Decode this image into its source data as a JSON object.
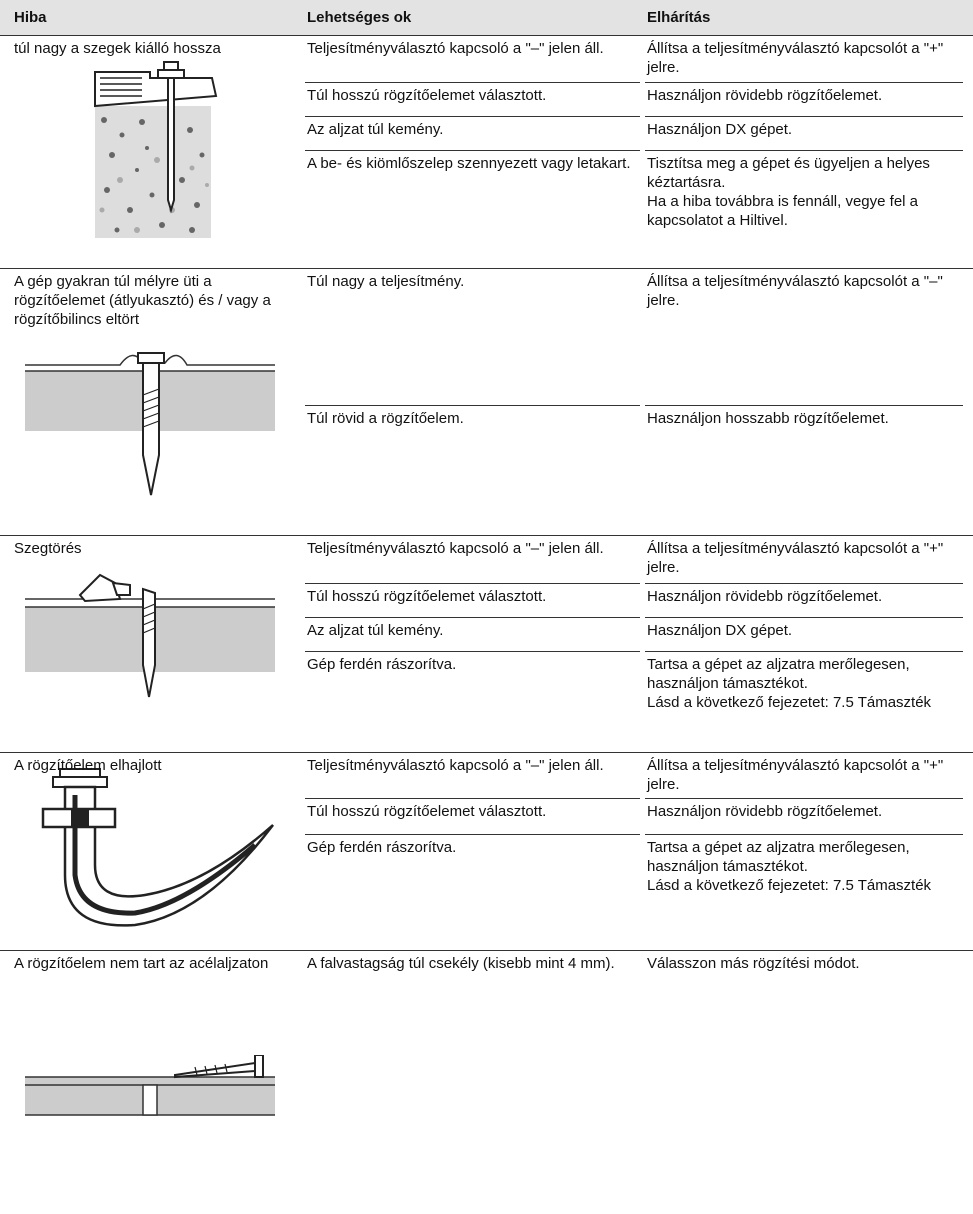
{
  "table": {
    "header": [
      "Hiba",
      "Lehetséges ok",
      "Elhárítás"
    ],
    "groups": [
      {
        "problem": "túl nagy a szegek kiálló hossza",
        "rows": [
          {
            "cause": "Teljesítményválasztó kapcsoló a \"–\" jelen áll.",
            "remedy": [
              "Állítsa a teljesítményválasztó kapcsolót a \"+\" jelre."
            ]
          },
          {
            "cause": "Túl hosszú rögzítőelemet választott.",
            "remedy": [
              "Használjon rövidebb rögzítőelemet."
            ]
          },
          {
            "cause": "Az aljzat túl kemény.",
            "remedy": [
              "Használjon DX gépet."
            ]
          },
          {
            "cause": "A be- és kiömlőszelep szennyezett vagy letakart.",
            "remedy": [
              "Tisztítsa meg a gépet és ügyeljen a helyes kéztartásra.",
              "Ha a hiba továbbra is fennáll, vegye fel a kapcsolatot a Hiltivel."
            ]
          }
        ]
      },
      {
        "problem": "A gép gyakran túl mélyre üti a rögzítőelemet (átlyukasztó) és / vagy a rögzítőbilincs eltört",
        "rows": [
          {
            "cause": "Túl nagy a teljesítmény.",
            "remedy": [
              "Állítsa a teljesítményválasztó kapcsolót a \"–\" jelre."
            ]
          },
          {
            "cause": "Túl rövid a rögzítőelem.",
            "remedy": [
              "Használjon hosszabb rögzítőelemet."
            ]
          }
        ]
      },
      {
        "problem": "Szegtörés",
        "rows": [
          {
            "cause": "Teljesítményválasztó kapcsoló a \"–\" jelen áll.",
            "remedy": [
              "Állítsa a teljesítményválasztó kapcsolót a \"+\" jelre."
            ]
          },
          {
            "cause": "Túl hosszú rögzítőelemet választott.",
            "remedy": [
              "Használjon rövidebb rögzítőelemet."
            ]
          },
          {
            "cause": "Az aljzat túl kemény.",
            "remedy": [
              "Használjon DX gépet."
            ]
          },
          {
            "cause": "Gép ferdén rászorítva.",
            "remedy": [
              "Tartsa a gépet az aljzatra merőlegesen, használjon támasztékot.",
              "Lásd a következő fejezetet: 7.5 Támaszték"
            ]
          }
        ]
      },
      {
        "problem": "A rögzítőelem elhajlott",
        "rows": [
          {
            "cause": "Teljesítményválasztó kapcsoló a \"–\" jelen áll.",
            "remedy": [
              "Állítsa a teljesítményválasztó kapcsolót a \"+\" jelre."
            ]
          },
          {
            "cause": "Túl hosszú rögzítőelemet választott.",
            "remedy": [
              "Használjon rövidebb rögzítőelemet."
            ]
          },
          {
            "cause": "Gép ferdén rászorítva.",
            "remedy": [
              "Tartsa a gépet az aljzatra merőlegesen, használjon támasztékot.",
              "Lásd a következő fejezetet: 7.5 Támaszték"
            ]
          }
        ]
      },
      {
        "problem": "A rögzítőelem nem tart az acélaljzaton",
        "rows": [
          {
            "cause": "A falvastagság túl csekély (kisebb mint 4 mm).",
            "remedy": [
              "Válasszon más rögzítési módot."
            ]
          }
        ]
      }
    ]
  }
}
